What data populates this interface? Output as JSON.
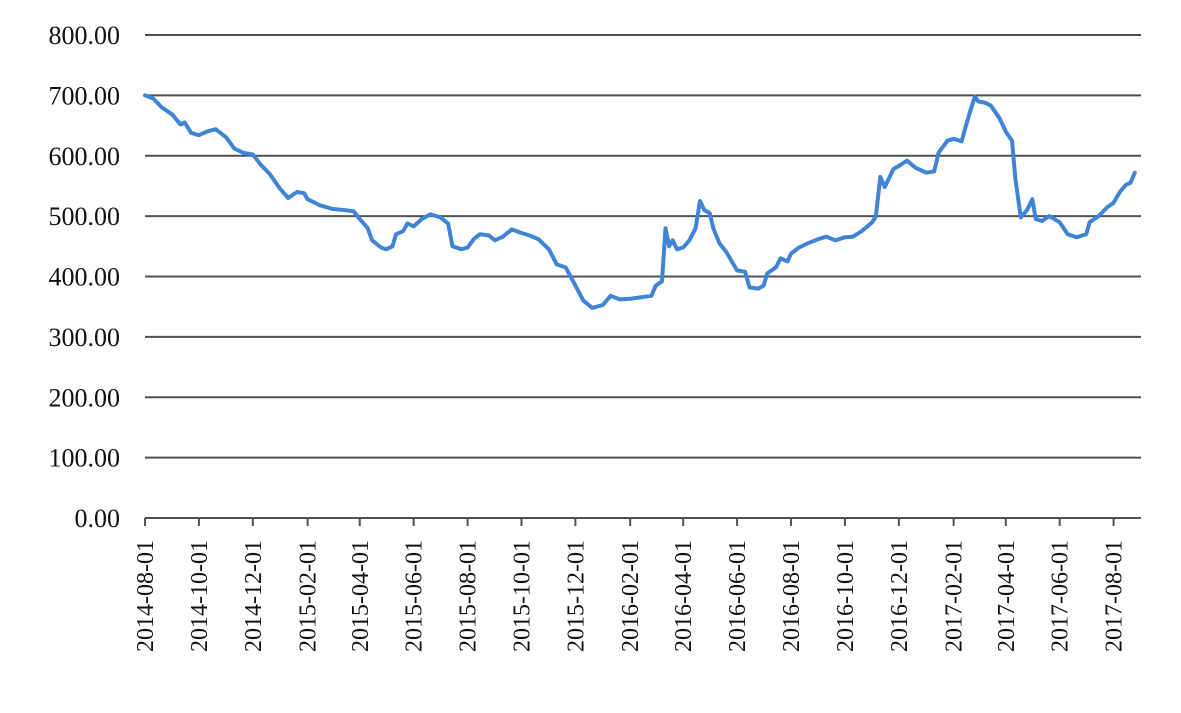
{
  "chart_data": {
    "type": "line",
    "title": "",
    "xlabel": "",
    "ylabel": "",
    "ylim": [
      0,
      800
    ],
    "yticks": [
      "0.00",
      "100.00",
      "200.00",
      "300.00",
      "400.00",
      "500.00",
      "600.00",
      "700.00",
      "800.00"
    ],
    "xlim": [
      "2014-08-01",
      "2017-09-01"
    ],
    "xticks": [
      "2014-08-01",
      "2014-10-01",
      "2014-12-01",
      "2015-02-01",
      "2015-04-01",
      "2015-06-01",
      "2015-08-01",
      "2015-10-01",
      "2015-12-01",
      "2016-02-01",
      "2016-04-01",
      "2016-06-01",
      "2016-08-01",
      "2016-10-01",
      "2016-12-01",
      "2017-02-01",
      "2017-04-01",
      "2017-06-01",
      "2017-08-01"
    ],
    "grid": true,
    "line_color": "#3f84d6",
    "series": [
      {
        "points": [
          [
            "2014-08-01",
            700
          ],
          [
            "2014-08-10",
            695
          ],
          [
            "2014-08-20",
            680
          ],
          [
            "2014-09-01",
            668
          ],
          [
            "2014-09-10",
            652
          ],
          [
            "2014-09-15",
            655
          ],
          [
            "2014-09-22",
            638
          ],
          [
            "2014-10-01",
            634
          ],
          [
            "2014-10-10",
            640
          ],
          [
            "2014-10-20",
            644
          ],
          [
            "2014-11-01",
            630
          ],
          [
            "2014-11-10",
            612
          ],
          [
            "2014-11-20",
            605
          ],
          [
            "2014-12-01",
            602
          ],
          [
            "2014-12-10",
            585
          ],
          [
            "2014-12-20",
            570
          ],
          [
            "2015-01-01",
            545
          ],
          [
            "2015-01-10",
            530
          ],
          [
            "2015-01-20",
            540
          ],
          [
            "2015-01-28",
            538
          ],
          [
            "2015-02-01",
            528
          ],
          [
            "2015-02-15",
            518
          ],
          [
            "2015-03-01",
            512
          ],
          [
            "2015-03-15",
            510
          ],
          [
            "2015-03-25",
            508
          ],
          [
            "2015-04-01",
            495
          ],
          [
            "2015-04-10",
            480
          ],
          [
            "2015-04-15",
            460
          ],
          [
            "2015-04-25",
            448
          ],
          [
            "2015-05-01",
            445
          ],
          [
            "2015-05-08",
            450
          ],
          [
            "2015-05-12",
            470
          ],
          [
            "2015-05-20",
            475
          ],
          [
            "2015-05-25",
            488
          ],
          [
            "2015-06-01",
            483
          ],
          [
            "2015-06-10",
            495
          ],
          [
            "2015-06-20",
            503
          ],
          [
            "2015-07-01",
            498
          ],
          [
            "2015-07-10",
            488
          ],
          [
            "2015-07-15",
            450
          ],
          [
            "2015-07-25",
            445
          ],
          [
            "2015-08-01",
            448
          ],
          [
            "2015-08-08",
            462
          ],
          [
            "2015-08-15",
            470
          ],
          [
            "2015-08-25",
            468
          ],
          [
            "2015-09-01",
            460
          ],
          [
            "2015-09-10",
            466
          ],
          [
            "2015-09-20",
            478
          ],
          [
            "2015-10-01",
            472
          ],
          [
            "2015-10-10",
            468
          ],
          [
            "2015-10-20",
            462
          ],
          [
            "2015-11-01",
            445
          ],
          [
            "2015-11-10",
            420
          ],
          [
            "2015-11-20",
            415
          ],
          [
            "2015-12-01",
            385
          ],
          [
            "2015-12-10",
            360
          ],
          [
            "2015-12-20",
            348
          ],
          [
            "2016-01-01",
            353
          ],
          [
            "2016-01-10",
            368
          ],
          [
            "2016-01-20",
            362
          ],
          [
            "2016-02-01",
            363
          ],
          [
            "2016-02-15",
            366
          ],
          [
            "2016-02-25",
            368
          ],
          [
            "2016-03-01",
            385
          ],
          [
            "2016-03-08",
            392
          ],
          [
            "2016-03-12",
            480
          ],
          [
            "2016-03-16",
            450
          ],
          [
            "2016-03-20",
            460
          ],
          [
            "2016-03-25",
            445
          ],
          [
            "2016-04-01",
            448
          ],
          [
            "2016-04-08",
            460
          ],
          [
            "2016-04-15",
            480
          ],
          [
            "2016-04-20",
            525
          ],
          [
            "2016-04-25",
            510
          ],
          [
            "2016-05-01",
            505
          ],
          [
            "2016-05-05",
            480
          ],
          [
            "2016-05-12",
            455
          ],
          [
            "2016-05-20",
            440
          ],
          [
            "2016-06-01",
            410
          ],
          [
            "2016-06-10",
            408
          ],
          [
            "2016-06-15",
            382
          ],
          [
            "2016-06-25",
            380
          ],
          [
            "2016-07-01",
            385
          ],
          [
            "2016-07-05",
            405
          ],
          [
            "2016-07-15",
            415
          ],
          [
            "2016-07-20",
            430
          ],
          [
            "2016-07-28",
            425
          ],
          [
            "2016-08-01",
            438
          ],
          [
            "2016-08-10",
            448
          ],
          [
            "2016-08-20",
            455
          ],
          [
            "2016-09-01",
            462
          ],
          [
            "2016-09-10",
            466
          ],
          [
            "2016-09-20",
            460
          ],
          [
            "2016-10-01",
            465
          ],
          [
            "2016-10-10",
            466
          ],
          [
            "2016-10-20",
            475
          ],
          [
            "2016-11-01",
            490
          ],
          [
            "2016-11-05",
            500
          ],
          [
            "2016-11-10",
            565
          ],
          [
            "2016-11-15",
            548
          ],
          [
            "2016-11-25",
            578
          ],
          [
            "2016-12-01",
            583
          ],
          [
            "2016-12-10",
            592
          ],
          [
            "2016-12-20",
            580
          ],
          [
            "2017-01-01",
            572
          ],
          [
            "2017-01-10",
            574
          ],
          [
            "2017-01-15",
            605
          ],
          [
            "2017-01-25",
            625
          ],
          [
            "2017-02-01",
            628
          ],
          [
            "2017-02-10",
            624
          ],
          [
            "2017-02-15",
            650
          ],
          [
            "2017-02-20",
            675
          ],
          [
            "2017-02-25",
            698
          ],
          [
            "2017-03-01",
            690
          ],
          [
            "2017-03-08",
            688
          ],
          [
            "2017-03-15",
            683
          ],
          [
            "2017-03-25",
            662
          ],
          [
            "2017-04-01",
            640
          ],
          [
            "2017-04-08",
            625
          ],
          [
            "2017-04-12",
            560
          ],
          [
            "2017-04-18",
            498
          ],
          [
            "2017-04-25",
            510
          ],
          [
            "2017-05-01",
            528
          ],
          [
            "2017-05-05",
            495
          ],
          [
            "2017-05-12",
            492
          ],
          [
            "2017-05-20",
            500
          ],
          [
            "2017-06-01",
            490
          ],
          [
            "2017-06-10",
            470
          ],
          [
            "2017-06-20",
            465
          ],
          [
            "2017-07-01",
            470
          ],
          [
            "2017-07-05",
            490
          ],
          [
            "2017-07-15",
            500
          ],
          [
            "2017-07-25",
            515
          ],
          [
            "2017-08-01",
            522
          ],
          [
            "2017-08-08",
            540
          ],
          [
            "2017-08-15",
            552
          ],
          [
            "2017-08-20",
            555
          ],
          [
            "2017-08-25",
            572
          ]
        ]
      }
    ]
  }
}
